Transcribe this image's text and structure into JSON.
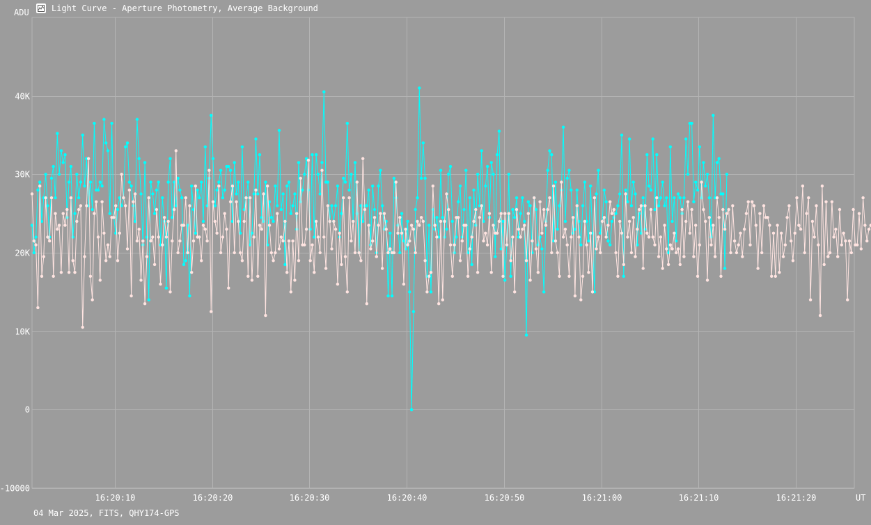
{
  "window": {
    "title": "Light Curve - Aperture Photometry, Average Background",
    "footer": "04 Mar 2025, FITS, QHY174-GPS",
    "icon": "chart-icon"
  },
  "colors": {
    "background": "#9c9c9c",
    "grid": "#b4b4b4",
    "series_target": "#00ffff",
    "series_comparison": "#ffe4e1"
  },
  "chart_data": {
    "type": "line",
    "xlabel": "UT",
    "ylabel": "ADU",
    "ylim": [
      -10000,
      50000
    ],
    "xlim": [
      "16:20:01.5",
      "16:21:26.0"
    ],
    "yticks": [
      {
        "value": -10000,
        "label": "-10000"
      },
      {
        "value": 0,
        "label": "0"
      },
      {
        "value": 10000,
        "label": "10K"
      },
      {
        "value": 20000,
        "label": "20K"
      },
      {
        "value": 30000,
        "label": "30K"
      },
      {
        "value": 40000,
        "label": "40K"
      }
    ],
    "xticks": [
      "16:20:10",
      "16:20:20",
      "16:20:30",
      "16:20:40",
      "16:20:50",
      "16:21:00",
      "16:21:10",
      "16:21:20"
    ],
    "grid": true,
    "x_start": "16:20:01.5",
    "x_step_seconds": 0.2,
    "series": [
      {
        "color": "#00ffff",
        "values": [
          23500,
          20000,
          22000,
          28000,
          29000,
          24000,
          27000,
          30000,
          26000,
          22000,
          29500,
          31000,
          27000,
          35200,
          30000,
          33000,
          31500,
          32500,
          24500,
          29000,
          31000,
          22000,
          25000,
          30000,
          27000,
          29000,
          35000,
          28500,
          32000,
          26000,
          29000,
          25500,
          36500,
          28000,
          28000,
          29000,
          28500,
          37000,
          34000,
          33000,
          25000,
          36500,
          24500,
          22500,
          25500,
          27000,
          26000,
          27000,
          33500,
          34000,
          29000,
          28500,
          26000,
          24000,
          37000,
          32000,
          27500,
          21000,
          31500,
          22000,
          14000,
          29000,
          27500,
          25000,
          28000,
          29000,
          21000,
          27000,
          24000,
          15500,
          29000,
          32000,
          24500,
          29000,
          26000,
          29500,
          28000,
          27000,
          18500,
          19000,
          23500,
          14500,
          28500,
          25500,
          22500,
          28000,
          27000,
          29000,
          24000,
          33500,
          26000,
          29500,
          37500,
          32000,
          26000,
          28000,
          29000,
          30500,
          27000,
          28000,
          31000,
          31000,
          30500,
          24000,
          31500,
          27500,
          29000,
          22500,
          33500,
          25500,
          27000,
          29000,
          21000,
          22500,
          27500,
          34500,
          27500,
          32500,
          24500,
          24000,
          29000,
          21000,
          26500,
          24500,
          24000,
          28500,
          26000,
          35600,
          25500,
          27500,
          18500,
          28500,
          29000,
          25000,
          26000,
          27500,
          23000,
          31500,
          26500,
          28000,
          30000,
          32000,
          28000,
          23000,
          32500,
          22000,
          32500,
          30000,
          27500,
          31500,
          40500,
          29000,
          29000,
          24000,
          26000,
          24000,
          26000,
          28500,
          22000,
          25000,
          29500,
          29000,
          36500,
          28000,
          30000,
          24000,
          31500,
          25000,
          20000,
          26000,
          24000,
          26000,
          26000,
          28000,
          21000,
          28500,
          25500,
          20000,
          28500,
          30500,
          26000,
          23000,
          24000,
          14500,
          22500,
          14500,
          29500,
          27000,
          23500,
          20000,
          25000,
          21500,
          20500,
          24000,
          15000,
          0,
          12500,
          25500,
          27000,
          41000,
          29500,
          34000,
          29500,
          17000,
          23500,
          15000,
          25500,
          23000,
          24500,
          22000,
          30500,
          24500,
          22000,
          23000,
          30000,
          31000,
          24000,
          20000,
          22000,
          26500,
          28500,
          22000,
          25500,
          30500,
          20000,
          27000,
          18500,
          28000,
          23500,
          30000,
          26000,
          33000,
          24000,
          28500,
          31000,
          24500,
          31500,
          30000,
          19500,
          32500,
          35500,
          20500,
          24000,
          16500,
          21000,
          30000,
          17000,
          25500,
          24500,
          27000,
          22000,
          25000,
          27000,
          24000,
          9500,
          26500,
          26000,
          20000,
          27000,
          25500,
          21000,
          22000,
          20500,
          15000,
          24000,
          30500,
          33000,
          32500,
          21500,
          29000,
          23000,
          26000,
          28000,
          36000,
          24000,
          29500,
          30500,
          28000,
          22500,
          23000,
          28000,
          24000,
          21000,
          26000,
          29000,
          24000,
          21500,
          28500,
          22500,
          15000,
          27500,
          30500,
          22500,
          24000,
          28000,
          26500,
          21500,
          21000,
          24000,
          24500,
          25000,
          26000,
          27500,
          35000,
          17000,
          28000,
          26500,
          34500,
          26000,
          29000,
          27500,
          21000,
          25000,
          22500,
          27000,
          23000,
          32500,
          28500,
          28000,
          34500,
          25500,
          32500,
          26000,
          27000,
          29000,
          26000,
          27000,
          20000,
          33500,
          24000,
          27000,
          21500,
          27500,
          27000,
          25000,
          27000,
          34500,
          30000,
          36500,
          36500,
          26500,
          29000,
          28000,
          33500,
          27000,
          31500,
          28500,
          30000,
          27000,
          22000,
          37500,
          27000,
          31500,
          32000,
          27500,
          27500,
          18000,
          30000
        ]
      },
      {
        "color": "#ffe4e1",
        "values": [
          27500,
          21500,
          21000,
          13000,
          28500,
          17000,
          19500,
          27000,
          22000,
          21500,
          27000,
          17000,
          25000,
          23000,
          23500,
          17500,
          25000,
          23500,
          25500,
          17500,
          27000,
          19000,
          17500,
          24000,
          25500,
          26000,
          10500,
          19500,
          26000,
          32000,
          17000,
          14000,
          25000,
          26500,
          22000,
          16500,
          26500,
          22500,
          19000,
          21000,
          19500,
          24500,
          24500,
          26000,
          19000,
          22500,
          30000,
          27000,
          26000,
          20500,
          28000,
          14500,
          26500,
          27500,
          21500,
          23000,
          16500,
          21500,
          13500,
          19500,
          27000,
          21500,
          22000,
          18500,
          25500,
          22000,
          16000,
          21000,
          24500,
          22000,
          24000,
          15000,
          21500,
          25500,
          33000,
          20000,
          21500,
          23500,
          23500,
          27000,
          20000,
          26000,
          17500,
          21500,
          28500,
          22000,
          22000,
          19000,
          23500,
          23000,
          21500,
          30500,
          12500,
          26500,
          24000,
          22500,
          28500,
          20000,
          22000,
          25000,
          23000,
          15500,
          26500,
          28500,
          20000,
          26500,
          24000,
          20000,
          19000,
          24000,
          27000,
          17000,
          27000,
          16500,
          22000,
          28000,
          17000,
          23500,
          23000,
          27500,
          12000,
          28500,
          23500,
          20000,
          19000,
          20000,
          25000,
          20500,
          22000,
          21500,
          24000,
          17500,
          21500,
          15000,
          21500,
          16500,
          25000,
          19000,
          29500,
          21000,
          21000,
          23000,
          31800,
          19000,
          21000,
          17500,
          24000,
          22000,
          20000,
          30500,
          22000,
          18000,
          26000,
          24000,
          20500,
          24000,
          23000,
          16000,
          22500,
          18500,
          27000,
          19500,
          15000,
          27000,
          21500,
          24000,
          20000,
          29000,
          20000,
          19000,
          32000,
          25500,
          13500,
          23500,
          20500,
          21500,
          24500,
          19500,
          23500,
          25000,
          18000,
          25000,
          23000,
          20000,
          20500,
          20000,
          20000,
          29000,
          22500,
          24500,
          22500,
          16000,
          23000,
          21000,
          21500,
          23500,
          23000,
          20000,
          24000,
          23500,
          24500,
          24000,
          19000,
          15000,
          17000,
          17500,
          28500,
          23500,
          22000,
          13500,
          24000,
          14000,
          24000,
          27500,
          25500,
          21000,
          17000,
          21000,
          24500,
          24500,
          19000,
          21500,
          23500,
          23500,
          17000,
          20500,
          22000,
          24000,
          25500,
          17500,
          24500,
          26000,
          21500,
          22500,
          21000,
          25000,
          17500,
          23500,
          22500,
          22500,
          24000,
          25000,
          17000,
          25000,
          21000,
          25000,
          19000,
          22000,
          15000,
          25500,
          23000,
          22000,
          23000,
          23500,
          19000,
          25000,
          16500,
          21500,
          27000,
          20500,
          17500,
          26500,
          22500,
          25500,
          23500,
          25500,
          27000,
          20000,
          28500,
          21500,
          20000,
          17000,
          29000,
          22000,
          23000,
          21000,
          17000,
          22000,
          24500,
          14500,
          26000,
          22000,
          14000,
          17000,
          24000,
          21000,
          17500,
          22500,
          15000,
          27000,
          20500,
          22000,
          20000,
          24000,
          24500,
          22000,
          23500,
          26500,
          25000,
          25500,
          20000,
          17000,
          24000,
          22500,
          18500,
          27500,
          22000,
          24000,
          20000,
          24500,
          19500,
          23000,
          25500,
          26000,
          18000,
          26000,
          22500,
          22000,
          25500,
          22000,
          21000,
          27000,
          19500,
          22000,
          18000,
          23500,
          20500,
          18500,
          21000,
          20500,
          22500,
          20000,
          20500,
          18500,
          25500,
          19500,
          24000,
          26500,
          22500,
          25500,
          19500,
          23500,
          17000,
          21000,
          29000,
          25500,
          24000,
          16500,
          24500,
          21000,
          23500,
          19500,
          27000,
          24500,
          17000,
          25500,
          23000,
          25000,
          25500,
          20000,
          26000,
          21500,
          20000,
          21000,
          22500,
          19500,
          23000,
          25000,
          26500,
          21000,
          26500,
          26000,
          23500,
          18000,
          25000,
          20000,
          26000,
          24500,
          24500,
          23500,
          17000,
          22500,
          17000,
          23500,
          17500,
          22500,
          19500,
          21000,
          24500,
          26000,
          21500,
          19000,
          22500,
          27000,
          23500,
          23000,
          28500,
          20000,
          25000,
          27000,
          14000,
          24000,
          22000,
          26000,
          21000,
          12000,
          28500,
          18500,
          26500,
          19500,
          20000,
          26500,
          22000,
          23000,
          19500,
          25500,
          21000,
          22500,
          21500,
          14000,
          21500,
          20000,
          25500,
          21000,
          21000,
          25000,
          20500,
          27000,
          23500,
          21500,
          23000,
          23500
        ]
      }
    ]
  }
}
